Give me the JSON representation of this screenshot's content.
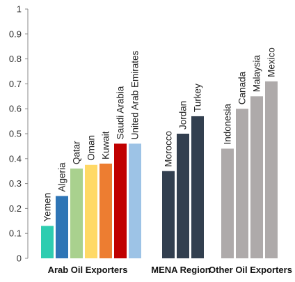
{
  "chart_data": {
    "type": "bar",
    "ylim": [
      0,
      1
    ],
    "yticks": [
      "0",
      "0.1",
      "0.2",
      "0.3",
      "0.4",
      "0.5",
      "0.6",
      "0.7",
      "0.8",
      "0.9",
      "1"
    ],
    "grid": false,
    "legend": "none",
    "groups": [
      {
        "name": "Arab Oil Exporters",
        "bars": [
          {
            "label": "Yemen",
            "value": 0.13,
            "color": "#2ECDB0"
          },
          {
            "label": "Algeria",
            "value": 0.25,
            "color": "#2E75B6"
          },
          {
            "label": "Qatar",
            "value": 0.36,
            "color": "#A9D18E"
          },
          {
            "label": "Oman",
            "value": 0.375,
            "color": "#FFD966"
          },
          {
            "label": "Kuwait",
            "value": 0.38,
            "color": "#ED7D31"
          },
          {
            "label": "Saudi Arabia",
            "value": 0.46,
            "color": "#C00000"
          },
          {
            "label": "United Arab Emirates",
            "value": 0.46,
            "color": "#9DC3E6"
          }
        ]
      },
      {
        "name": "MENA Region",
        "bars": [
          {
            "label": "Morocco",
            "value": 0.35,
            "color": "#323F4F"
          },
          {
            "label": "Jordan",
            "value": 0.5,
            "color": "#323F4F"
          },
          {
            "label": "Turkey",
            "value": 0.57,
            "color": "#323F4F"
          }
        ]
      },
      {
        "name": "Other Oil Exporters",
        "bars": [
          {
            "label": "Indonesia",
            "value": 0.44,
            "color": "#AEAAAA"
          },
          {
            "label": "Canada",
            "value": 0.6,
            "color": "#AEAAAA"
          },
          {
            "label": "Malaysia",
            "value": 0.65,
            "color": "#AEAAAA"
          },
          {
            "label": "Mexico",
            "value": 0.71,
            "color": "#AEAAAA"
          }
        ]
      }
    ]
  }
}
